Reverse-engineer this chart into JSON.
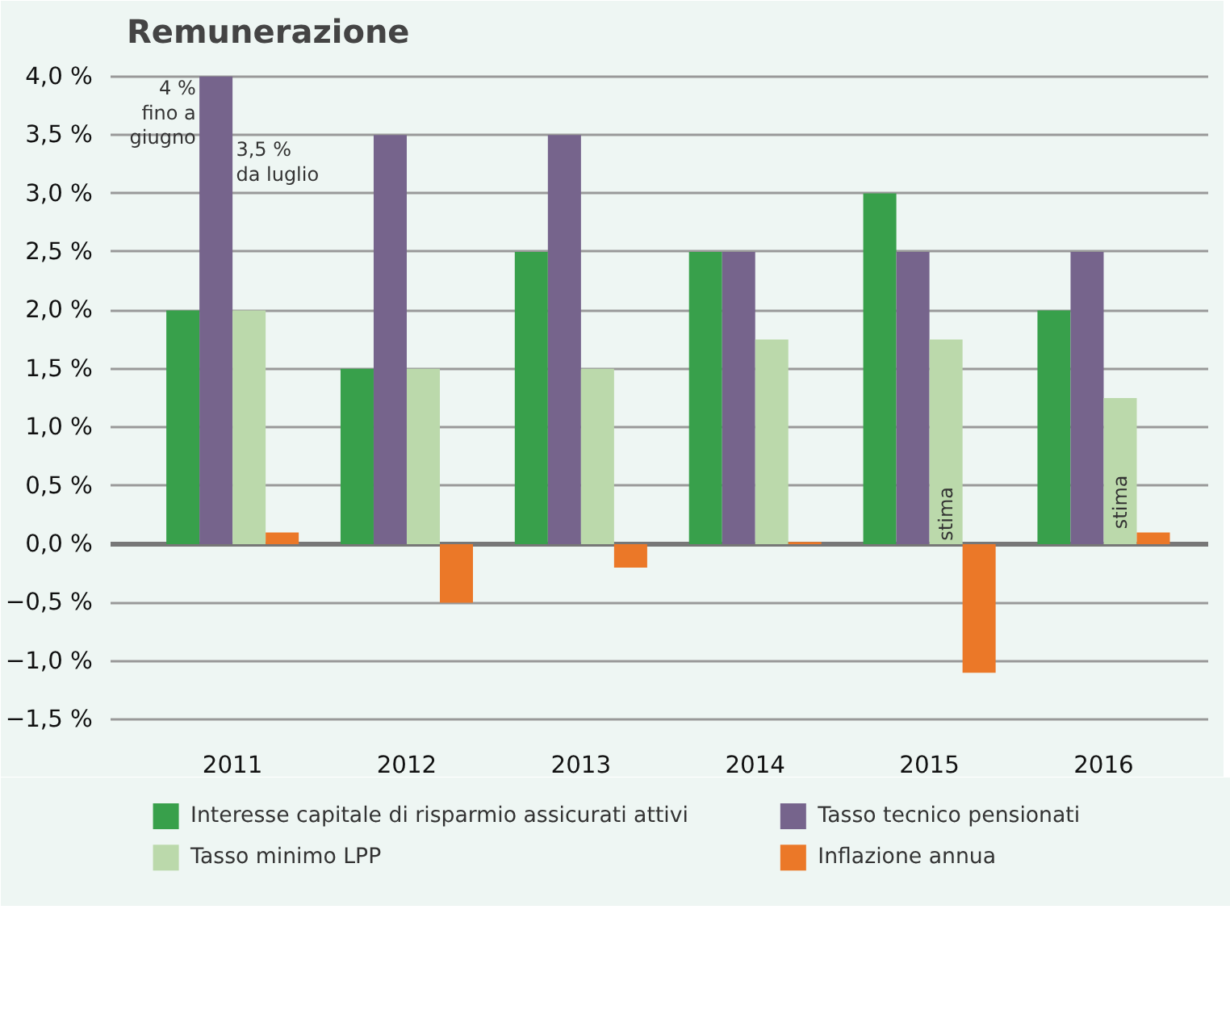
{
  "chart_data": {
    "type": "bar",
    "title": "Remunerazione",
    "categories": [
      "2011",
      "2012",
      "2013",
      "2014",
      "2015",
      "2016"
    ],
    "series": [
      {
        "name": "Interesse capitale di risparmio assicurati attivi",
        "color": "#38a04b",
        "values": [
          2.0,
          1.5,
          2.5,
          2.5,
          3.0,
          2.0
        ]
      },
      {
        "name": "Tasso tecnico pensionati",
        "color": "#76648c",
        "values": [
          4.0,
          3.5,
          3.5,
          2.5,
          2.5,
          2.5
        ]
      },
      {
        "name": "Tasso minimo LPP",
        "color": "#bbd9ab",
        "values": [
          2.0,
          1.5,
          1.5,
          1.75,
          1.75,
          1.25
        ]
      },
      {
        "name": "Inflazione annua",
        "color": "#eb7828",
        "values": [
          0.1,
          -0.5,
          -0.2,
          0.02,
          -1.1,
          0.1
        ]
      }
    ],
    "ylim": [
      -1.65,
      4.15
    ],
    "yticks": [
      {
        "value": -1.5,
        "label": "−1,5 %"
      },
      {
        "value": -1.0,
        "label": "−1,0 %"
      },
      {
        "value": -0.5,
        "label": "−0,5 %"
      },
      {
        "value": 0.0,
        "label": "0,0 %"
      },
      {
        "value": 0.5,
        "label": "0,5 %"
      },
      {
        "value": 1.0,
        "label": "1,0 %"
      },
      {
        "value": 1.5,
        "label": "1,5 %"
      },
      {
        "value": 2.0,
        "label": "2,0 %"
      },
      {
        "value": 2.5,
        "label": "2,5 %"
      },
      {
        "value": 3.0,
        "label": "3,0 %"
      },
      {
        "value": 3.5,
        "label": "3,5 %"
      },
      {
        "value": 4.0,
        "label": "4,0 %"
      }
    ],
    "grid": "y",
    "ref_lines": [
      {
        "axis": "y",
        "value": 0,
        "label": null,
        "color": "#777777"
      }
    ],
    "legend": "bottom",
    "annotations": [
      {
        "text": "4 %\nfino a\ngiugno",
        "x": "2011",
        "y": 4.0
      },
      {
        "text": "3,5 %\nda luglio",
        "x": "2011",
        "y": 3.5
      },
      {
        "text": "stima",
        "x": "2015",
        "y": 0
      },
      {
        "text": "stima",
        "x": "2016",
        "y": 0.1
      }
    ]
  }
}
